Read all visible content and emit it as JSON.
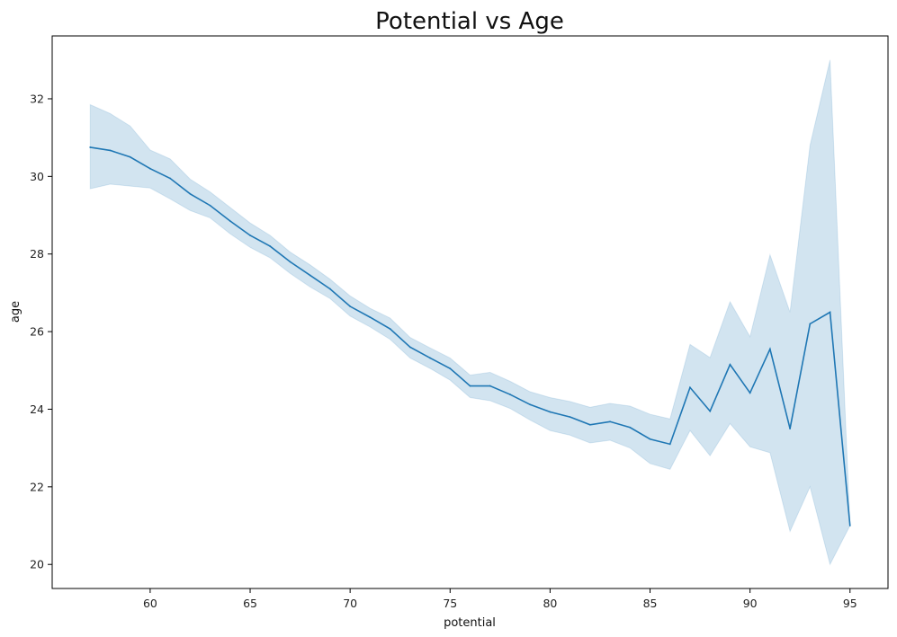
{
  "chart_data": {
    "type": "line",
    "title": "Potential vs Age",
    "xlabel": "potential",
    "ylabel": "age",
    "xlim": [
      55.1,
      96.9
    ],
    "ylim": [
      19.38,
      33.62
    ],
    "xticks": [
      60,
      65,
      70,
      75,
      80,
      85,
      90,
      95
    ],
    "yticks": [
      20,
      22,
      24,
      26,
      28,
      30,
      32
    ],
    "grid": false,
    "legend": "none",
    "colors": {
      "line": "#1f77b4",
      "band": "#1f77b4",
      "band_opacity": 0.2
    },
    "series": [
      {
        "x": [
          57,
          58,
          59,
          60,
          61,
          62,
          63,
          64,
          65,
          66,
          67,
          68,
          69,
          70,
          71,
          72,
          73,
          74,
          75,
          76,
          77,
          78,
          79,
          80,
          81,
          82,
          83,
          84,
          85,
          86,
          87,
          88,
          89,
          90,
          91,
          92,
          93,
          94,
          95
        ],
        "y": [
          30.75,
          30.67,
          30.5,
          30.2,
          29.95,
          29.55,
          29.25,
          28.85,
          28.48,
          28.2,
          27.8,
          27.45,
          27.1,
          26.65,
          26.37,
          26.07,
          25.6,
          25.32,
          25.05,
          24.6,
          24.6,
          24.38,
          24.12,
          23.93,
          23.8,
          23.6,
          23.68,
          23.53,
          23.23,
          23.1,
          24.56,
          23.95,
          25.15,
          24.42,
          25.55,
          23.5,
          26.2,
          26.5,
          21.0
        ],
        "ci_upper": [
          31.85,
          31.62,
          31.3,
          30.68,
          30.45,
          29.93,
          29.6,
          29.2,
          28.8,
          28.48,
          28.05,
          27.72,
          27.35,
          26.92,
          26.6,
          26.35,
          25.85,
          25.58,
          25.32,
          24.88,
          24.95,
          24.72,
          24.45,
          24.3,
          24.2,
          24.05,
          24.15,
          24.08,
          23.87,
          23.75,
          25.67,
          25.33,
          26.77,
          25.87,
          27.98,
          26.5,
          30.8,
          33.0,
          21.0
        ],
        "ci_lower": [
          29.68,
          29.8,
          29.75,
          29.7,
          29.42,
          29.12,
          28.93,
          28.52,
          28.17,
          27.9,
          27.5,
          27.15,
          26.85,
          26.4,
          26.12,
          25.8,
          25.32,
          25.05,
          24.75,
          24.3,
          24.22,
          24.02,
          23.72,
          23.45,
          23.33,
          23.13,
          23.2,
          23.0,
          22.6,
          22.45,
          23.45,
          22.8,
          23.63,
          23.03,
          22.88,
          20.85,
          22.0,
          20.0,
          21.0
        ]
      }
    ]
  }
}
